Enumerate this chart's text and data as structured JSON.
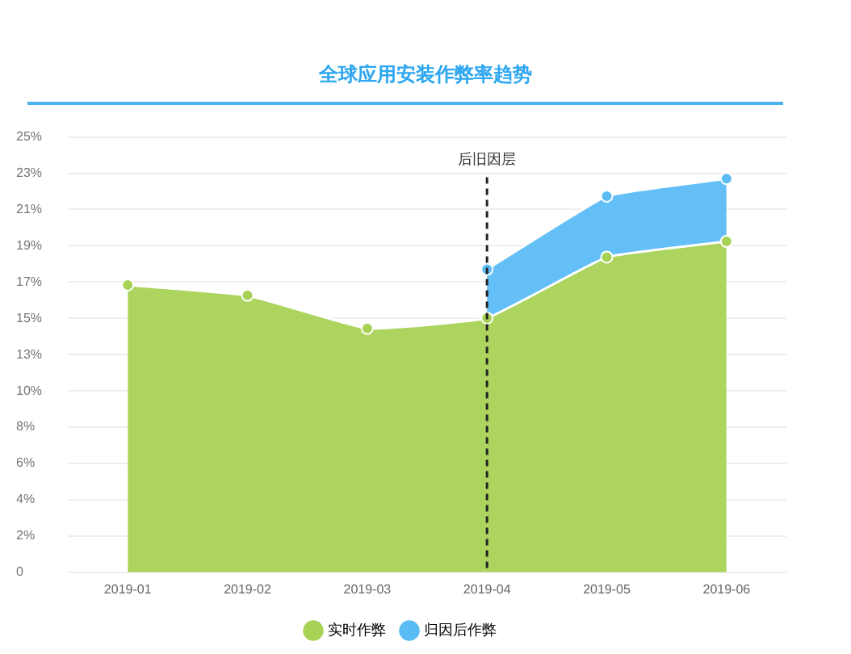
{
  "chart_data": {
    "type": "area",
    "title": "全球应用安装作弊率趋势",
    "categories": [
      "2019-01",
      "2019-02",
      "2019-03",
      "2019-04",
      "2019-05",
      "2019-06"
    ],
    "series": [
      {
        "name": "实时作弊",
        "color": "#a8d255",
        "values": [
          16.5,
          15.9,
          14.0,
          14.6,
          18.1,
          19.0
        ]
      },
      {
        "name": "归因后作弊",
        "color": "#5bbcf5",
        "values": [
          null,
          null,
          null,
          17.4,
          21.6,
          22.6
        ]
      }
    ],
    "ylim": [
      0,
      25
    ],
    "yticks": [
      0,
      {
        "value": 2.0833,
        "label": "2%"
      },
      {
        "value": 4.1667,
        "label": "4%"
      },
      {
        "value": 6.25,
        "label": "6%"
      },
      {
        "value": 8.3333,
        "label": "8%"
      },
      {
        "value": 10.4167,
        "label": "10%"
      },
      {
        "value": 12.5,
        "label": "13%"
      },
      {
        "value": 14.5833,
        "label": "15%"
      },
      {
        "value": 16.6667,
        "label": "17%"
      },
      {
        "value": 18.75,
        "label": "19%"
      },
      {
        "value": 20.8333,
        "label": "21%"
      },
      {
        "value": 22.9167,
        "label": "23%"
      },
      {
        "value": 25,
        "label": "25%"
      }
    ],
    "ref_lines": [
      {
        "axis": "x",
        "value": "2019-04",
        "label": "后旧因层",
        "color": "#222222",
        "line_style": "dashed"
      }
    ],
    "grid": "y",
    "legend": "bottom",
    "marker": "circle"
  }
}
